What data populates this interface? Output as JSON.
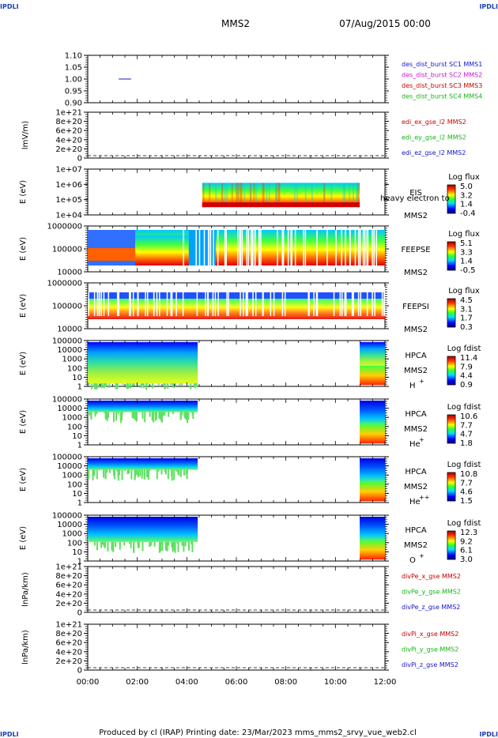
{
  "page": {
    "corners": [
      "IPDLI",
      "IPDLI",
      "IPDLI",
      "IPDLI"
    ],
    "spacecraft": "MMS2",
    "date": "07/Aug/2015 00:00",
    "footer": "Produced by cl (IRAP)   Printing date: 23/Mar/2023   mms_mms2_srvy_vue_web2.cl"
  },
  "chart_data": [
    {
      "type": "line",
      "name": "dist-status",
      "ylim": [
        0.9,
        1.1
      ],
      "yticks": [
        "1.10",
        "1.05",
        "1.00",
        "0.95",
        "0.90"
      ],
      "legend": [
        {
          "label": "des_dist_burst SC1 MMS1",
          "color": "#1414c8"
        },
        {
          "label": "des_dist_burst SC2 MMS2",
          "color": "#c814c8"
        },
        {
          "label": "des_dist_burst SC3 MMS3",
          "color": "#c80000"
        },
        {
          "label": "des_dist_burst SC4 MMS4",
          "color": "#14b414"
        }
      ],
      "segments": [
        {
          "x": [
            "01:15",
            "01:45"
          ],
          "y": 1.0,
          "color": "#1414c8"
        }
      ]
    },
    {
      "type": "line",
      "name": "efield",
      "ylabel": "lmV/m)",
      "yticks": [
        "1e+21",
        "8e+20",
        "6e+20",
        "4e+20",
        "2e+20",
        "0"
      ],
      "legend": [
        {
          "label": "edi_ex_gse_l2 MMS2",
          "color": "#c80000"
        },
        {
          "label": "edi_ey_gse_l2 MMS2",
          "color": "#14b414"
        },
        {
          "label": "edi_ez_gse_l2 MMS2",
          "color": "#1414c8"
        }
      ]
    },
    {
      "type": "heatmap",
      "name": "eis",
      "ylabel": "E (eV)",
      "yticks": [
        "1e+07",
        "1e+06",
        "1e+05",
        "1e+04"
      ],
      "instrument": "EIS",
      "overlay": "heavy electron to",
      "spacecraft": "MMS2",
      "colorbar": {
        "title": "Log flux",
        "values": [
          "5.0",
          "3.2",
          "1.4",
          "-0.4"
        ]
      }
    },
    {
      "type": "heatmap",
      "name": "feeps-e",
      "ylabel": "E (eV)",
      "yticks": [
        "1000000",
        "100000",
        "10000"
      ],
      "instrument": "FEEPSE",
      "spacecraft": "MMS2",
      "colorbar": {
        "title": "Log flux",
        "values": [
          "5.1",
          "3.3",
          "1.4",
          "-0.5"
        ]
      }
    },
    {
      "type": "heatmap",
      "name": "feeps-i",
      "ylabel": "E (eV)",
      "yticks": [
        "1000000",
        "100000",
        "10000"
      ],
      "instrument": "FEEPSI",
      "spacecraft": "MMS2",
      "colorbar": {
        "title": "Log flux",
        "values": [
          "4.5",
          "3.1",
          "1.7",
          "0.3"
        ]
      }
    },
    {
      "type": "heatmap",
      "name": "hpca-h",
      "ylabel": "E (eV)",
      "yticks": [
        "100000",
        "10000",
        "1000",
        "100",
        "10",
        "1"
      ],
      "instrument": "HPCA",
      "spacecraft": "MMS2",
      "species": "H",
      "charge": "+",
      "colorbar": {
        "title": "Log fdist",
        "values": [
          "11.4",
          "7.9",
          "4.4",
          "0.9"
        ]
      }
    },
    {
      "type": "heatmap",
      "name": "hpca-he1",
      "ylabel": "E (eV)",
      "yticks": [
        "100000",
        "10000",
        "1000",
        "100",
        "10",
        "1"
      ],
      "instrument": "HPCA",
      "spacecraft": "MMS2",
      "species": "He",
      "charge": "+",
      "colorbar": {
        "title": "Log fdist",
        "values": [
          "10.6",
          "7.7",
          "4.7",
          "1.8"
        ]
      }
    },
    {
      "type": "heatmap",
      "name": "hpca-he2",
      "ylabel": "E (eV)",
      "yticks": [
        "100000",
        "10000",
        "1000",
        "100",
        "10",
        "1"
      ],
      "instrument": "HPCA",
      "spacecraft": "MMS2",
      "species": "He",
      "charge": "++",
      "colorbar": {
        "title": "Log fdist",
        "values": [
          "10.8",
          "7.7",
          "4.6",
          "1.5"
        ]
      }
    },
    {
      "type": "heatmap",
      "name": "hpca-o",
      "ylabel": "E (eV)",
      "yticks": [
        "100000",
        "10000",
        "1000",
        "100",
        "10",
        "1"
      ],
      "instrument": "HPCA",
      "spacecraft": "MMS2",
      "species": "O",
      "charge": "+",
      "colorbar": {
        "title": "Log fdist",
        "values": [
          "12.3",
          "9.2",
          "6.1",
          "3.0"
        ]
      }
    },
    {
      "type": "line",
      "name": "divpe",
      "ylabel": "lnPa/km)",
      "yticks": [
        "1e+21",
        "8e+20",
        "6e+20",
        "4e+20",
        "2e+20",
        "0"
      ],
      "legend": [
        {
          "label": "divPe_x_gse MMS2",
          "color": "#c80000"
        },
        {
          "label": "divPe_y_gse MMS2",
          "color": "#14b414"
        },
        {
          "label": "divPe_z_gse MMS2",
          "color": "#1414c8"
        }
      ]
    },
    {
      "type": "line",
      "name": "divpi",
      "ylabel": "lnPa/km)",
      "yticks": [
        "1e+21",
        "8e+20",
        "6e+20",
        "4e+20",
        "2e+20",
        "0"
      ],
      "legend": [
        {
          "label": "divPi_x_gse MMS2",
          "color": "#c80000"
        },
        {
          "label": "divPi_y_gse MMS2",
          "color": "#14b414"
        },
        {
          "label": "divPi_z_gse MMS2",
          "color": "#1414c8"
        }
      ]
    }
  ],
  "xaxis": {
    "range": [
      "00:00",
      "12:00"
    ],
    "ticks": [
      "00:00",
      "02:00",
      "04:00",
      "06:00",
      "08:00",
      "10:00",
      "12:00"
    ]
  }
}
